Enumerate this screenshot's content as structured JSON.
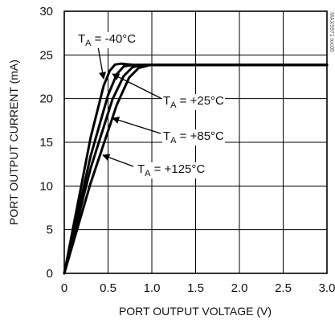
{
  "chart_data": {
    "type": "line",
    "title": "",
    "xlabel": "PORT OUTPUT VOLTAGE (V)",
    "ylabel": "PORT OUTPUT CURRENT (mA)",
    "xlim": [
      0,
      3.0
    ],
    "ylim": [
      0,
      30
    ],
    "x_ticks": [
      "0",
      "0.5",
      "1.0",
      "1.5",
      "2.0",
      "2.5",
      "3.0"
    ],
    "y_ticks": [
      "0",
      "5",
      "10",
      "15",
      "20",
      "25",
      "30"
    ],
    "grid": true,
    "series": [
      {
        "label_main": "T",
        "label_sub": "A",
        "label_value": " = -40°C",
        "points": [
          [
            0,
            0
          ],
          [
            0.3,
            15.5
          ],
          [
            0.45,
            21.5
          ],
          [
            0.52,
            23.2
          ],
          [
            0.58,
            23.9
          ],
          [
            0.65,
            24.0
          ],
          [
            0.8,
            23.85
          ],
          [
            3.0,
            23.85
          ]
        ]
      },
      {
        "label_main": "T",
        "label_sub": "A",
        "label_value": " = +25°C",
        "points": [
          [
            0,
            0
          ],
          [
            0.3,
            13.4
          ],
          [
            0.5,
            20.4
          ],
          [
            0.6,
            22.8
          ],
          [
            0.68,
            23.7
          ],
          [
            0.78,
            23.85
          ],
          [
            3.0,
            23.85
          ]
        ]
      },
      {
        "label_main": "T",
        "label_sub": "A",
        "label_value": " = +85°C",
        "points": [
          [
            0,
            0
          ],
          [
            0.3,
            12.0
          ],
          [
            0.55,
            19.9
          ],
          [
            0.68,
            22.6
          ],
          [
            0.78,
            23.6
          ],
          [
            0.9,
            23.85
          ],
          [
            3.0,
            23.85
          ]
        ]
      },
      {
        "label_main": "T",
        "label_sub": "A",
        "label_value": " = +125°C",
        "points": [
          [
            0,
            0
          ],
          [
            0.3,
            10.3
          ],
          [
            0.6,
            19.3
          ],
          [
            0.74,
            22.4
          ],
          [
            0.85,
            23.5
          ],
          [
            0.98,
            23.85
          ],
          [
            3.0,
            23.85
          ]
        ]
      }
    ],
    "figure_code": "MAX5971 toc05"
  }
}
